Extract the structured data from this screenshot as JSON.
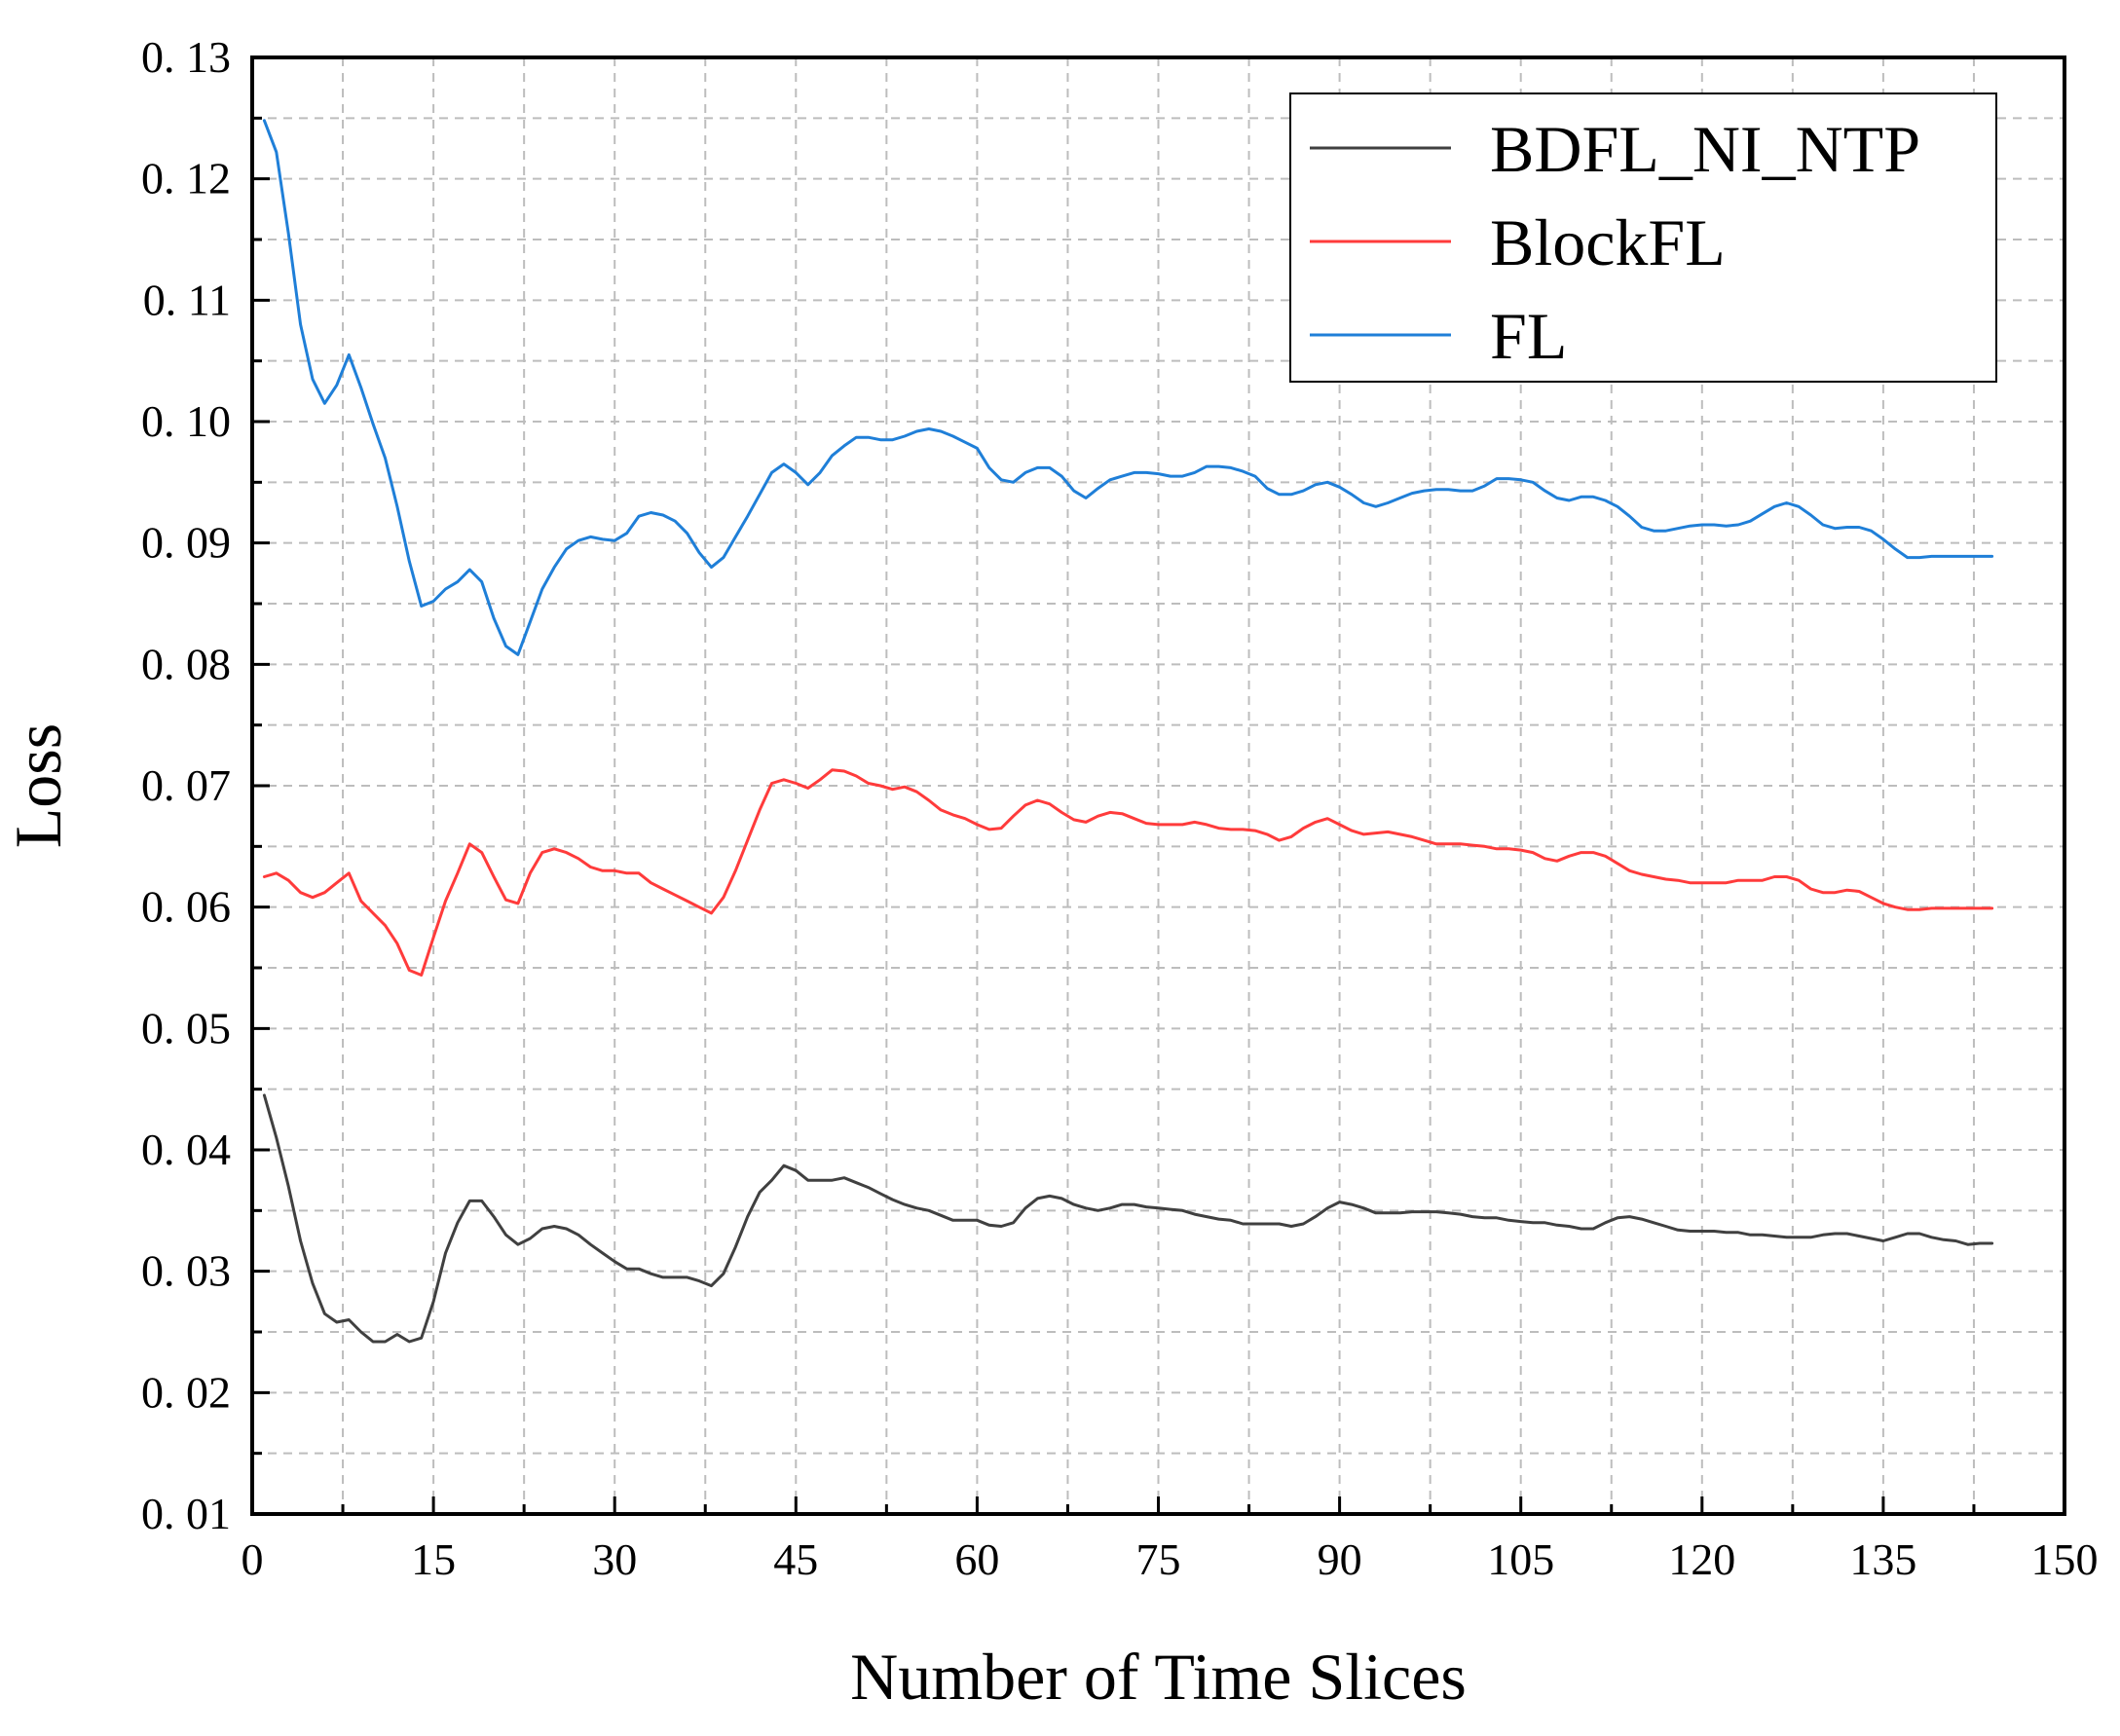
{
  "chart_data": {
    "type": "line",
    "title": "",
    "xlabel": "Number of Time Slices",
    "ylabel": "Loss",
    "xlim": [
      0,
      150
    ],
    "ylim": [
      0.01,
      0.13
    ],
    "xticks": [
      0,
      15,
      30,
      45,
      60,
      75,
      90,
      105,
      120,
      135,
      150
    ],
    "xtick_labels": [
      "0",
      "15",
      "30",
      "45",
      "60",
      "75",
      "90",
      "105",
      "120",
      "135",
      "150"
    ],
    "yticks": [
      0.01,
      0.02,
      0.03,
      0.04,
      0.05,
      0.06,
      0.07,
      0.08,
      0.09,
      0.1,
      0.11,
      0.12,
      0.13
    ],
    "ytick_labels": [
      "0. 01",
      "0. 02",
      "0. 03",
      "0. 04",
      "0. 05",
      "0. 06",
      "0. 07",
      "0. 08",
      "0. 09",
      "0. 10",
      "0. 11",
      "0. 12",
      "0. 13"
    ],
    "grid": true,
    "legend_position": "top-right",
    "series": [
      {
        "name": "BDFL_NI_NTP",
        "color": "#404040",
        "x": [
          1,
          2,
          3,
          4,
          5,
          6,
          7,
          8,
          9,
          10,
          11,
          12,
          13,
          14,
          15,
          16,
          17,
          18,
          19,
          20,
          21,
          22,
          23,
          24,
          25,
          26,
          27,
          28,
          29,
          30,
          31,
          32,
          33,
          34,
          35,
          36,
          37,
          38,
          39,
          40,
          41,
          42,
          43,
          44,
          45,
          46,
          47,
          48,
          49,
          50,
          51,
          52,
          53,
          54,
          55,
          56,
          57,
          58,
          59,
          60,
          61,
          62,
          63,
          64,
          65,
          66,
          67,
          68,
          69,
          70,
          71,
          72,
          73,
          74,
          75,
          76,
          77,
          78,
          79,
          80,
          81,
          82,
          83,
          84,
          85,
          86,
          87,
          88,
          89,
          90,
          91,
          92,
          93,
          94,
          95,
          96,
          97,
          98,
          99,
          100,
          101,
          102,
          103,
          104,
          105,
          106,
          107,
          108,
          109,
          110,
          111,
          112,
          113,
          114,
          115,
          116,
          117,
          118,
          119,
          120,
          121,
          122,
          123,
          124,
          125,
          126,
          127,
          128,
          129,
          130,
          131,
          132,
          133,
          134,
          135,
          136,
          137,
          138,
          139,
          140,
          141,
          142,
          143,
          144
        ],
        "y": [
          0.0445,
          0.041,
          0.037,
          0.0325,
          0.029,
          0.0265,
          0.0258,
          0.026,
          0.025,
          0.0242,
          0.0242,
          0.0248,
          0.0242,
          0.0245,
          0.0275,
          0.0315,
          0.034,
          0.0358,
          0.0358,
          0.0345,
          0.033,
          0.0322,
          0.0327,
          0.0335,
          0.0337,
          0.0335,
          0.033,
          0.0322,
          0.0315,
          0.0308,
          0.0302,
          0.0302,
          0.0298,
          0.0295,
          0.0295,
          0.0295,
          0.0292,
          0.0288,
          0.0298,
          0.032,
          0.0345,
          0.0365,
          0.0375,
          0.0387,
          0.0383,
          0.0375,
          0.0375,
          0.0375,
          0.0377,
          0.0373,
          0.0369,
          0.0364,
          0.0359,
          0.0355,
          0.0352,
          0.035,
          0.0346,
          0.0342,
          0.0342,
          0.0342,
          0.0338,
          0.0337,
          0.034,
          0.0352,
          0.036,
          0.0362,
          0.036,
          0.0355,
          0.0352,
          0.035,
          0.0352,
          0.0355,
          0.0355,
          0.0353,
          0.0352,
          0.0351,
          0.035,
          0.0347,
          0.0345,
          0.0343,
          0.0342,
          0.0339,
          0.0339,
          0.0339,
          0.0339,
          0.0337,
          0.0339,
          0.0345,
          0.0352,
          0.0357,
          0.0355,
          0.0352,
          0.0348,
          0.0348,
          0.0348,
          0.0349,
          0.0349,
          0.0349,
          0.0348,
          0.0347,
          0.0345,
          0.0344,
          0.0344,
          0.0342,
          0.0341,
          0.034,
          0.034,
          0.0338,
          0.0337,
          0.0335,
          0.0335,
          0.034,
          0.0344,
          0.0345,
          0.0343,
          0.034,
          0.0337,
          0.0334,
          0.0333,
          0.0333,
          0.0333,
          0.0332,
          0.0332,
          0.033,
          0.033,
          0.0329,
          0.0328,
          0.0328,
          0.0328,
          0.033,
          0.0331,
          0.0331,
          0.0329,
          0.0327,
          0.0325,
          0.0328,
          0.0331,
          0.0331,
          0.0328,
          0.0326,
          0.0325,
          0.0322,
          0.0323,
          0.0323
        ]
      },
      {
        "name": "BlockFL",
        "color": "#ff3b3b",
        "x": [
          1,
          2,
          3,
          4,
          5,
          6,
          7,
          8,
          9,
          10,
          11,
          12,
          13,
          14,
          15,
          16,
          17,
          18,
          19,
          20,
          21,
          22,
          23,
          24,
          25,
          26,
          27,
          28,
          29,
          30,
          31,
          32,
          33,
          34,
          35,
          36,
          37,
          38,
          39,
          40,
          41,
          42,
          43,
          44,
          45,
          46,
          47,
          48,
          49,
          50,
          51,
          52,
          53,
          54,
          55,
          56,
          57,
          58,
          59,
          60,
          61,
          62,
          63,
          64,
          65,
          66,
          67,
          68,
          69,
          70,
          71,
          72,
          73,
          74,
          75,
          76,
          77,
          78,
          79,
          80,
          81,
          82,
          83,
          84,
          85,
          86,
          87,
          88,
          89,
          90,
          91,
          92,
          93,
          94,
          95,
          96,
          97,
          98,
          99,
          100,
          101,
          102,
          103,
          104,
          105,
          106,
          107,
          108,
          109,
          110,
          111,
          112,
          113,
          114,
          115,
          116,
          117,
          118,
          119,
          120,
          121,
          122,
          123,
          124,
          125,
          126,
          127,
          128,
          129,
          130,
          131,
          132,
          133,
          134,
          135,
          136,
          137,
          138,
          139,
          140,
          141,
          142,
          143,
          144
        ],
        "y": [
          0.0625,
          0.0628,
          0.0622,
          0.0612,
          0.0608,
          0.0612,
          0.062,
          0.0628,
          0.0605,
          0.0595,
          0.0585,
          0.057,
          0.0548,
          0.0544,
          0.0575,
          0.0605,
          0.0628,
          0.0652,
          0.0645,
          0.0625,
          0.0606,
          0.0603,
          0.0628,
          0.0645,
          0.0648,
          0.0645,
          0.064,
          0.0633,
          0.063,
          0.063,
          0.0628,
          0.0628,
          0.062,
          0.0615,
          0.061,
          0.0605,
          0.06,
          0.0595,
          0.0608,
          0.063,
          0.0655,
          0.068,
          0.0702,
          0.0705,
          0.0702,
          0.0698,
          0.0705,
          0.0713,
          0.0712,
          0.0708,
          0.0702,
          0.07,
          0.0697,
          0.0699,
          0.0695,
          0.0688,
          0.068,
          0.0676,
          0.0673,
          0.0668,
          0.0664,
          0.0665,
          0.0675,
          0.0684,
          0.0688,
          0.0685,
          0.0678,
          0.0672,
          0.067,
          0.0675,
          0.0678,
          0.0677,
          0.0673,
          0.0669,
          0.0668,
          0.0668,
          0.0668,
          0.067,
          0.0668,
          0.0665,
          0.0664,
          0.0664,
          0.0663,
          0.066,
          0.0655,
          0.0658,
          0.0665,
          0.067,
          0.0673,
          0.0668,
          0.0663,
          0.066,
          0.0661,
          0.0662,
          0.066,
          0.0658,
          0.0655,
          0.0652,
          0.0652,
          0.0652,
          0.0651,
          0.065,
          0.0648,
          0.0648,
          0.0647,
          0.0645,
          0.064,
          0.0638,
          0.0642,
          0.0645,
          0.0645,
          0.0642,
          0.0636,
          0.063,
          0.0627,
          0.0625,
          0.0623,
          0.0622,
          0.062,
          0.062,
          0.062,
          0.062,
          0.0622,
          0.0622,
          0.0622,
          0.0625,
          0.0625,
          0.0622,
          0.0615,
          0.0612,
          0.0612,
          0.0614,
          0.0613,
          0.0608,
          0.0603,
          0.06,
          0.0598,
          0.0598,
          0.0599,
          0.0599,
          0.0599,
          0.0599,
          0.0599,
          0.0599
        ]
      },
      {
        "name": "FL",
        "color": "#1f7fd8",
        "x": [
          1,
          2,
          3,
          4,
          5,
          6,
          7,
          8,
          9,
          10,
          11,
          12,
          13,
          14,
          15,
          16,
          17,
          18,
          19,
          20,
          21,
          22,
          23,
          24,
          25,
          26,
          27,
          28,
          29,
          30,
          31,
          32,
          33,
          34,
          35,
          36,
          37,
          38,
          39,
          40,
          41,
          42,
          43,
          44,
          45,
          46,
          47,
          48,
          49,
          50,
          51,
          52,
          53,
          54,
          55,
          56,
          57,
          58,
          59,
          60,
          61,
          62,
          63,
          64,
          65,
          66,
          67,
          68,
          69,
          70,
          71,
          72,
          73,
          74,
          75,
          76,
          77,
          78,
          79,
          80,
          81,
          82,
          83,
          84,
          85,
          86,
          87,
          88,
          89,
          90,
          91,
          92,
          93,
          94,
          95,
          96,
          97,
          98,
          99,
          100,
          101,
          102,
          103,
          104,
          105,
          106,
          107,
          108,
          109,
          110,
          111,
          112,
          113,
          114,
          115,
          116,
          117,
          118,
          119,
          120,
          121,
          122,
          123,
          124,
          125,
          126,
          127,
          128,
          129,
          130,
          131,
          132,
          133,
          134,
          135,
          136,
          137,
          138,
          139,
          140,
          141,
          142,
          143,
          144
        ],
        "y": [
          0.1248,
          0.1222,
          0.1155,
          0.108,
          0.1035,
          0.1015,
          0.103,
          0.1055,
          0.1028,
          0.0998,
          0.097,
          0.093,
          0.0885,
          0.0848,
          0.0852,
          0.0862,
          0.0868,
          0.0878,
          0.0868,
          0.0838,
          0.0815,
          0.0808,
          0.0835,
          0.0862,
          0.088,
          0.0895,
          0.0902,
          0.0905,
          0.0903,
          0.0902,
          0.0908,
          0.0922,
          0.0925,
          0.0923,
          0.0918,
          0.0908,
          0.0892,
          0.088,
          0.0888,
          0.0905,
          0.0922,
          0.094,
          0.0958,
          0.0965,
          0.0958,
          0.0948,
          0.0958,
          0.0972,
          0.098,
          0.0987,
          0.0987,
          0.0985,
          0.0985,
          0.0988,
          0.0992,
          0.0994,
          0.0992,
          0.0988,
          0.0983,
          0.0978,
          0.0962,
          0.0952,
          0.095,
          0.0958,
          0.0962,
          0.0962,
          0.0955,
          0.0943,
          0.0937,
          0.0945,
          0.0952,
          0.0955,
          0.0958,
          0.0958,
          0.0957,
          0.0955,
          0.0955,
          0.0958,
          0.0963,
          0.0963,
          0.0962,
          0.0959,
          0.0955,
          0.0945,
          0.094,
          0.094,
          0.0943,
          0.0948,
          0.095,
          0.0946,
          0.094,
          0.0933,
          0.093,
          0.0933,
          0.0937,
          0.0941,
          0.0943,
          0.0944,
          0.0944,
          0.0943,
          0.0943,
          0.0947,
          0.0953,
          0.0953,
          0.0952,
          0.095,
          0.0943,
          0.0937,
          0.0935,
          0.0938,
          0.0938,
          0.0935,
          0.093,
          0.0922,
          0.0913,
          0.091,
          0.091,
          0.0912,
          0.0914,
          0.0915,
          0.0915,
          0.0914,
          0.0915,
          0.0918,
          0.0924,
          0.093,
          0.0933,
          0.093,
          0.0923,
          0.0915,
          0.0912,
          0.0913,
          0.0913,
          0.091,
          0.0903,
          0.0895,
          0.0888,
          0.0888,
          0.0889,
          0.0889,
          0.0889,
          0.0889,
          0.0889,
          0.0889
        ]
      }
    ]
  }
}
